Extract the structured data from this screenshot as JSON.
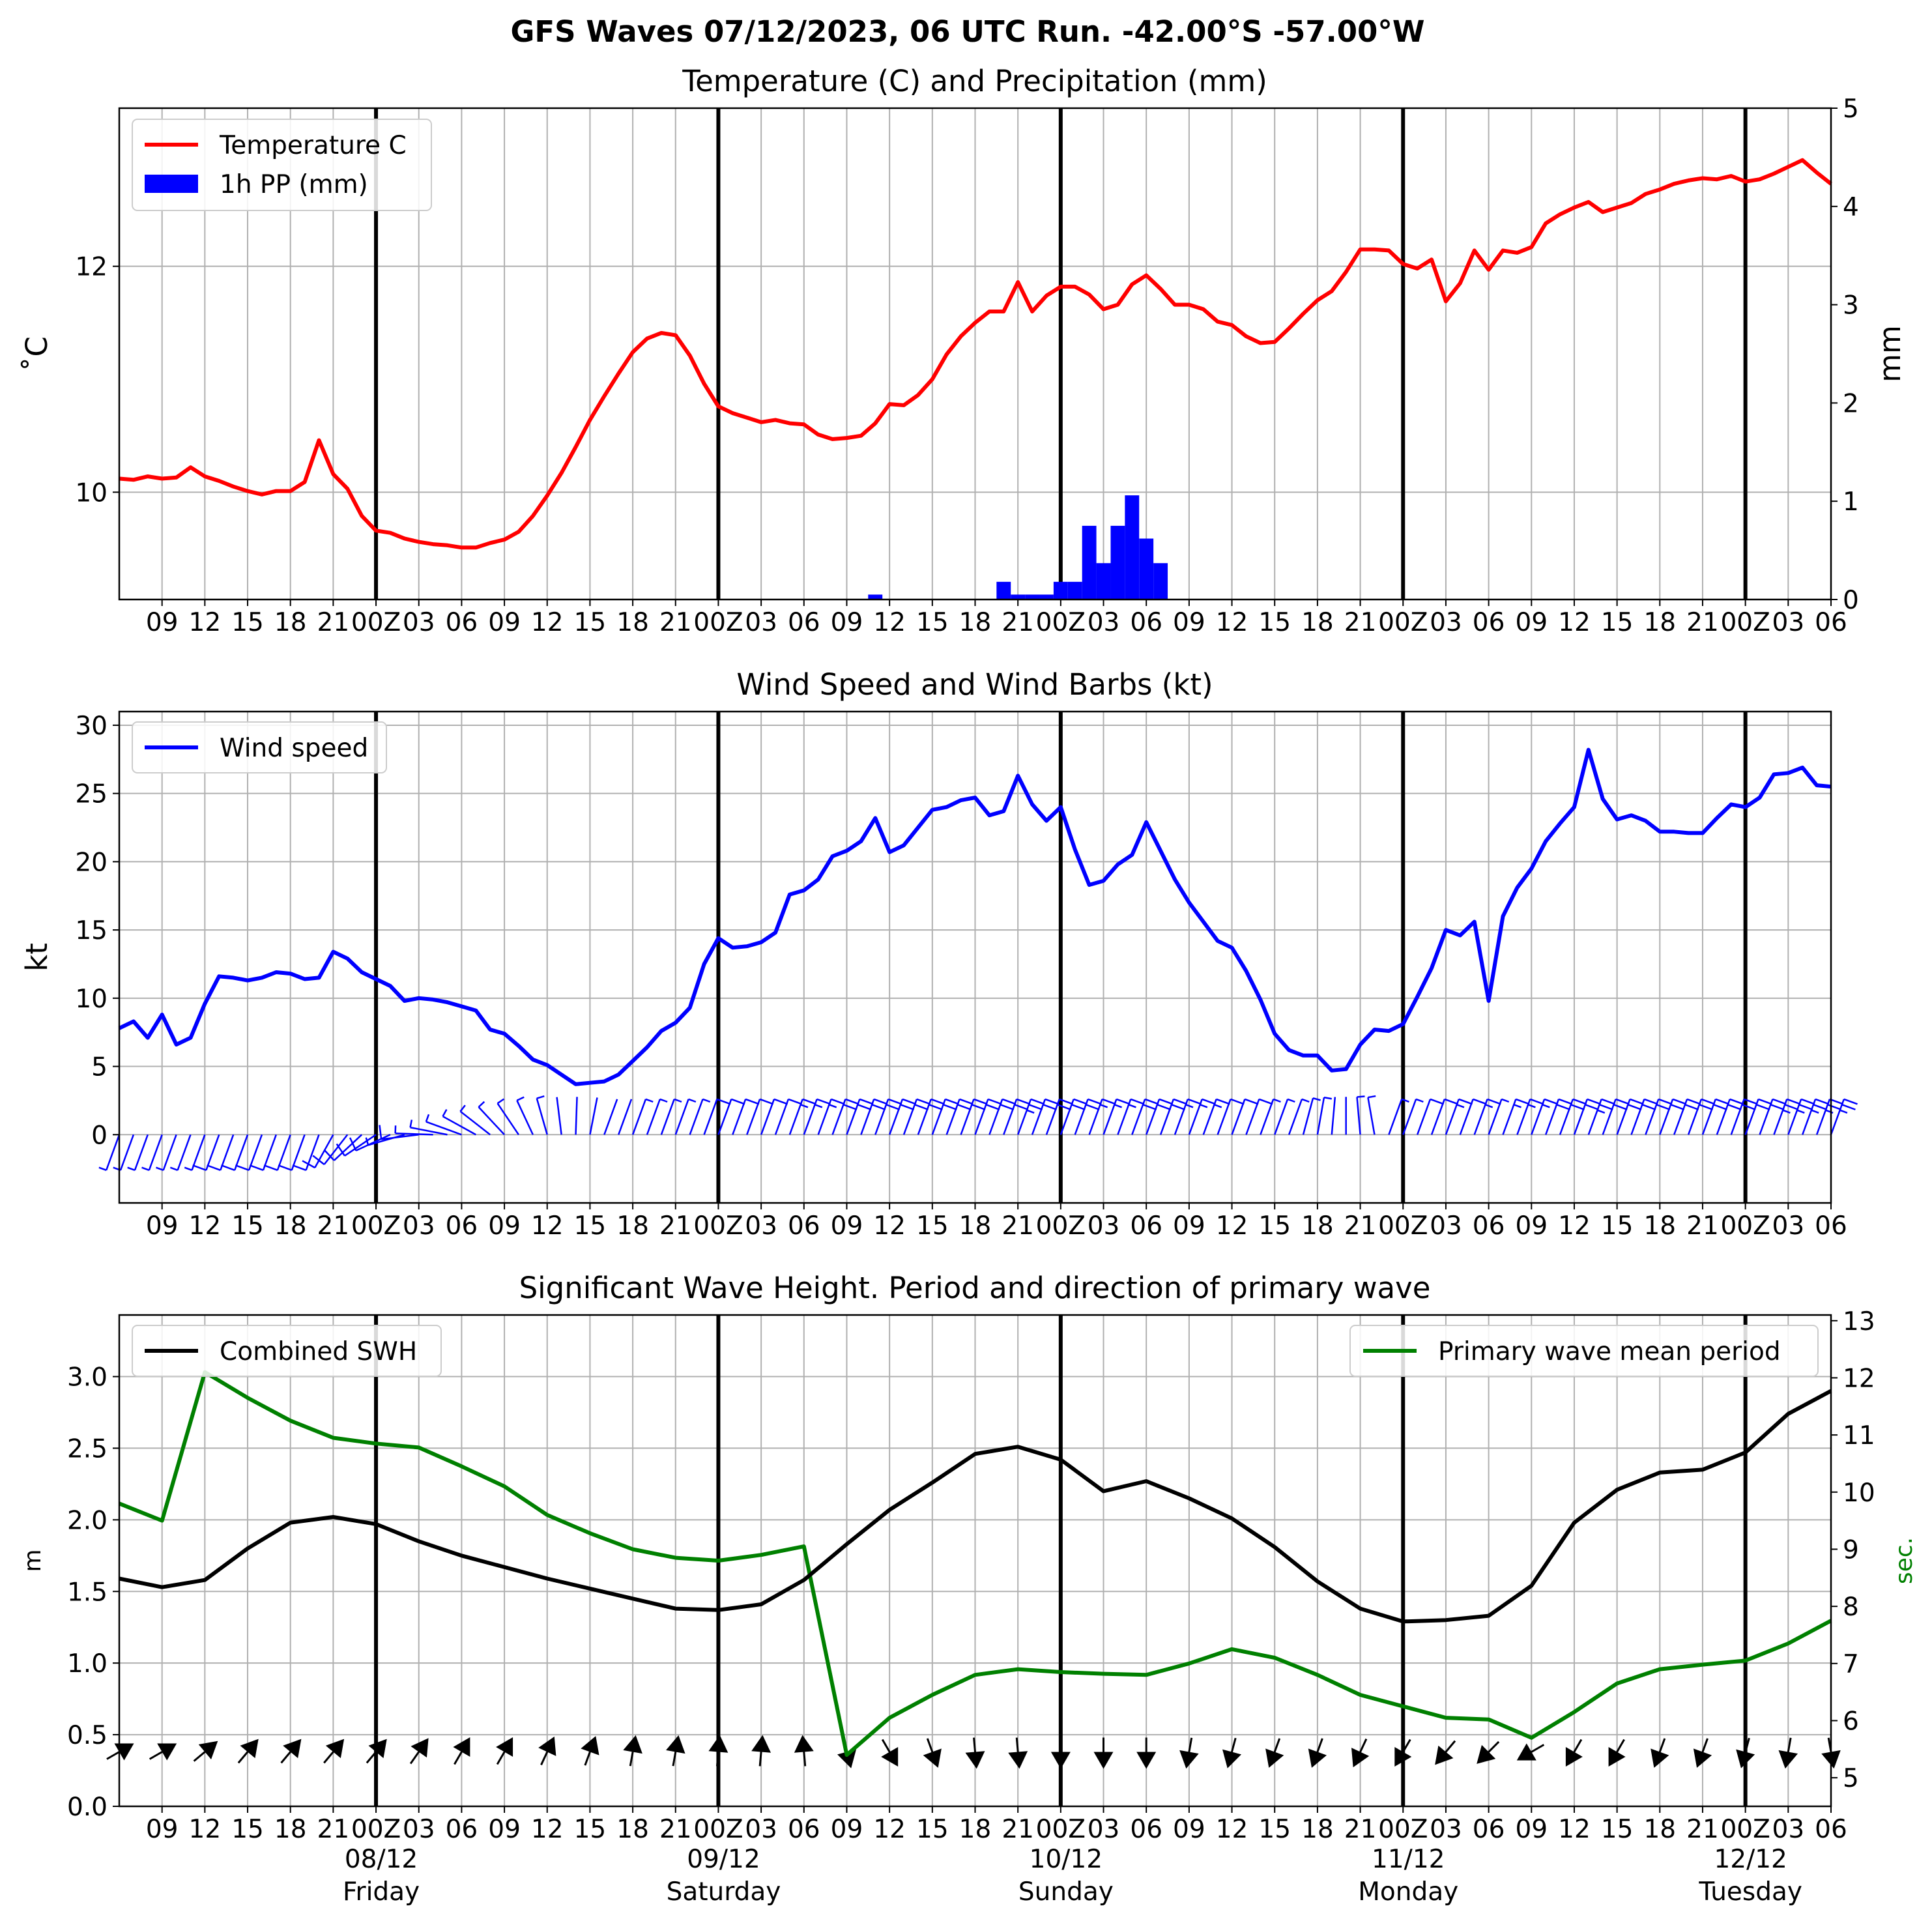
{
  "suptitle": "GFS Waves 07/12/2023, 06 UTC Run. -42.00°S -57.00°W",
  "x_tick_labels": [
    "09",
    "12",
    "15",
    "18",
    "21",
    "00Z",
    "03",
    "06",
    "09",
    "12",
    "15",
    "18",
    "21",
    "00Z",
    "03",
    "06",
    "09",
    "12",
    "15",
    "18",
    "21",
    "00Z",
    "03",
    "06",
    "09",
    "12",
    "15",
    "18",
    "21",
    "00Z",
    "03",
    "06",
    "09",
    "12",
    "15",
    "18",
    "21",
    "00Z",
    "03",
    "06"
  ],
  "day_labels": [
    {
      "date": "08/12",
      "day": "Friday"
    },
    {
      "date": "09/12",
      "day": "Saturday"
    },
    {
      "date": "10/12",
      "day": "Sunday"
    },
    {
      "date": "11/12",
      "day": "Monday"
    },
    {
      "date": "12/12",
      "day": "Tuesday"
    }
  ],
  "colors": {
    "temperature": "#ff0000",
    "precip": "#0000ff",
    "wind": "#0000ff",
    "swh": "#000000",
    "period": "#008000",
    "grid": "#b0b0b0"
  },
  "chart_data": [
    {
      "type": "line",
      "title": "Temperature (C) and Precipitation (mm)",
      "x_unit": "hours after 07/12/2023 06 UTC",
      "xlim": [
        0,
        120
      ],
      "ylabel": "˚C",
      "ylim": [
        9.05,
        13.4
      ],
      "yticks": [
        10,
        12
      ],
      "y2label": "mm",
      "y2lim": [
        0,
        5
      ],
      "y2ticks": [
        0,
        1,
        2,
        3,
        4,
        5
      ],
      "legend": "top-left",
      "legend_entries": [
        "Temperature C",
        "1h PP (mm)"
      ],
      "series": [
        {
          "name": "Temperature C",
          "x": [
            0,
            1,
            2,
            3,
            4,
            5,
            6,
            7,
            8,
            9,
            10,
            11,
            12,
            13,
            14,
            15,
            16,
            17,
            18,
            19,
            20,
            21,
            22,
            23,
            24,
            25,
            26,
            27,
            28,
            29,
            30,
            31,
            32,
            33,
            34,
            35,
            36,
            37,
            38,
            39,
            40,
            41,
            42,
            43,
            44,
            45,
            46,
            47,
            48,
            49,
            50,
            51,
            52,
            53,
            54,
            55,
            56,
            57,
            58,
            59,
            60,
            61,
            62,
            63,
            64,
            65,
            66,
            67,
            68,
            69,
            70,
            71,
            72,
            73,
            74,
            75,
            76,
            77,
            78,
            79,
            80,
            81,
            82,
            83,
            84,
            85,
            86,
            87,
            88,
            89,
            90,
            91,
            92,
            93,
            94,
            95,
            96,
            97,
            98,
            99,
            100,
            101,
            102,
            103,
            104,
            105,
            106,
            107,
            108,
            109,
            110,
            111,
            112,
            113,
            114,
            115,
            116,
            117,
            118,
            119,
            120
          ],
          "values": [
            10.12,
            10.11,
            10.14,
            10.12,
            10.13,
            10.22,
            10.14,
            10.1,
            10.05,
            10.01,
            9.98,
            10.01,
            10.01,
            10.09,
            10.46,
            10.16,
            10.03,
            9.79,
            9.66,
            9.64,
            9.59,
            9.56,
            9.54,
            9.53,
            9.51,
            9.51,
            9.55,
            9.58,
            9.65,
            9.79,
            9.97,
            10.17,
            10.4,
            10.64,
            10.85,
            11.05,
            11.24,
            11.36,
            11.41,
            11.39,
            11.21,
            10.96,
            10.76,
            10.7,
            10.66,
            10.62,
            10.64,
            10.61,
            10.6,
            10.51,
            10.47,
            10.48,
            10.5,
            10.61,
            10.78,
            10.77,
            10.86,
            11.0,
            11.22,
            11.38,
            11.5,
            11.6,
            11.6,
            11.86,
            11.6,
            11.74,
            11.82,
            11.82,
            11.75,
            11.62,
            11.66,
            11.84,
            11.92,
            11.8,
            11.66,
            11.66,
            11.62,
            11.51,
            11.48,
            11.38,
            11.32,
            11.33,
            11.45,
            11.58,
            11.7,
            11.78,
            11.95,
            12.15,
            12.15,
            12.14,
            12.02,
            11.98,
            12.06,
            11.69,
            11.85,
            12.14,
            11.97,
            12.14,
            12.12,
            12.17,
            12.38,
            12.46,
            12.52,
            12.57,
            12.48,
            12.52,
            12.56,
            12.64,
            12.68,
            12.73,
            12.76,
            12.78,
            12.77,
            12.8,
            12.75,
            12.77,
            12.82,
            12.88,
            12.94,
            12.83,
            12.73
          ]
        },
        {
          "name": "1h PP (mm)",
          "axis": "right",
          "bar_x": [
            53,
            62,
            63,
            64,
            65,
            66,
            67,
            68,
            69,
            70,
            71,
            72,
            73
          ],
          "bar_values": [
            0.05,
            0.18,
            0.05,
            0.05,
            0.05,
            0.18,
            0.18,
            0.75,
            0.37,
            0.75,
            1.06,
            0.62,
            0.37
          ]
        }
      ]
    },
    {
      "type": "line",
      "title": "Wind Speed and Wind Barbs (kt)",
      "x_unit": "hours after 07/12/2023 06 UTC",
      "xlim": [
        0,
        120
      ],
      "ylabel": "kt",
      "ylim": [
        -5,
        31
      ],
      "yticks": [
        0,
        5,
        10,
        15,
        20,
        25,
        30
      ],
      "legend": "top-left",
      "legend_entries": [
        "Wind speed"
      ],
      "barbs": "wind barbs drawn along y = 0, every hour",
      "series": [
        {
          "name": "Wind speed",
          "x": [
            0,
            1,
            2,
            3,
            4,
            5,
            6,
            7,
            8,
            9,
            10,
            11,
            12,
            13,
            14,
            15,
            16,
            17,
            18,
            19,
            20,
            21,
            22,
            23,
            24,
            25,
            26,
            27,
            28,
            29,
            30,
            31,
            32,
            33,
            34,
            35,
            36,
            37,
            38,
            39,
            40,
            41,
            42,
            43,
            44,
            45,
            46,
            47,
            48,
            49,
            50,
            51,
            52,
            53,
            54,
            55,
            56,
            57,
            58,
            59,
            60,
            61,
            62,
            63,
            64,
            65,
            66,
            67,
            68,
            69,
            70,
            71,
            72,
            73,
            74,
            75,
            76,
            77,
            78,
            79,
            80,
            81,
            82,
            83,
            84,
            85,
            86,
            87,
            88,
            89,
            90,
            91,
            92,
            93,
            94,
            95,
            96,
            97,
            98,
            99,
            100,
            101,
            102,
            103,
            104,
            105,
            106,
            107,
            108,
            109,
            110,
            111,
            112,
            113,
            114,
            115,
            116,
            117,
            118,
            119,
            120
          ],
          "values": [
            7.8,
            8.3,
            7.1,
            8.8,
            6.6,
            7.1,
            9.6,
            11.6,
            11.5,
            11.3,
            11.5,
            11.9,
            11.8,
            11.4,
            11.5,
            13.4,
            12.9,
            11.9,
            11.4,
            10.9,
            9.8,
            10.0,
            9.9,
            9.7,
            9.4,
            9.1,
            7.7,
            7.4,
            6.5,
            5.5,
            5.1,
            4.4,
            3.7,
            3.8,
            3.9,
            4.4,
            5.4,
            6.4,
            7.6,
            8.2,
            9.3,
            12.5,
            14.4,
            13.7,
            13.8,
            14.1,
            14.8,
            17.6,
            17.9,
            18.7,
            20.4,
            20.8,
            21.5,
            23.2,
            20.7,
            21.2,
            22.5,
            23.8,
            24.0,
            24.5,
            24.7,
            23.4,
            23.7,
            26.3,
            24.2,
            23.0,
            24.0,
            20.9,
            18.3,
            18.6,
            19.8,
            20.5,
            22.9,
            20.8,
            18.7,
            17.0,
            15.6,
            14.2,
            13.7,
            12.0,
            9.9,
            7.4,
            6.2,
            5.8,
            5.8,
            4.7,
            4.8,
            6.6,
            7.7,
            7.6,
            8.1,
            10.1,
            12.2,
            15.0,
            14.6,
            15.6,
            9.8,
            16.0,
            18.1,
            19.5,
            21.5,
            22.8,
            24.0,
            28.2,
            24.6,
            23.1,
            23.4,
            23.0,
            22.2,
            22.2,
            22.1,
            22.1,
            23.2,
            24.2,
            24.0,
            24.7,
            26.4,
            26.5,
            26.9,
            25.6,
            25.5
          ]
        }
      ]
    },
    {
      "type": "line",
      "title": "Significant Wave Height. Period and direction of primary wave",
      "x_unit": "hours after 07/12/2023 06 UTC",
      "xlim": [
        0,
        120
      ],
      "ylabel": "m",
      "ylim": [
        0,
        3.43
      ],
      "yticks": [
        0.0,
        0.5,
        1.0,
        1.5,
        2.0,
        2.5,
        3.0
      ],
      "y2label": "sec.",
      "y2lim": [
        4.5,
        13.1
      ],
      "y2ticks": [
        5,
        6,
        7,
        8,
        9,
        10,
        11,
        12,
        13
      ],
      "direction_arrows": "primary wave direction arrows drawn at 3-hourly steps near y = 0.4",
      "series": [
        {
          "name": "Combined SWH",
          "legend": "top-left",
          "x": [
            0,
            3,
            6,
            9,
            12,
            15,
            18,
            21,
            24,
            27,
            30,
            33,
            36,
            39,
            42,
            45,
            48,
            51,
            54,
            57,
            60,
            63,
            66,
            69,
            72,
            75,
            78,
            81,
            84,
            87,
            90,
            93,
            96,
            99,
            102,
            105,
            108,
            111,
            114,
            117,
            120
          ],
          "values": [
            1.59,
            1.53,
            1.58,
            1.8,
            1.98,
            2.02,
            1.97,
            1.85,
            1.75,
            1.67,
            1.59,
            1.52,
            1.45,
            1.38,
            1.37,
            1.41,
            1.58,
            1.83,
            2.07,
            2.26,
            2.46,
            2.51,
            2.42,
            2.2,
            2.27,
            2.15,
            2.01,
            1.81,
            1.57,
            1.38,
            1.29,
            1.3,
            1.33,
            1.54,
            1.98,
            2.21,
            2.33,
            2.35,
            2.47,
            2.74,
            2.9
          ]
        },
        {
          "name": "Primary wave mean period",
          "legend": "top-right",
          "axis": "right",
          "x": [
            0,
            3,
            6,
            9,
            12,
            15,
            18,
            21,
            24,
            27,
            30,
            33,
            36,
            39,
            42,
            45,
            48,
            51,
            54,
            57,
            60,
            63,
            66,
            69,
            72,
            75,
            78,
            81,
            84,
            87,
            90,
            93,
            96,
            99,
            102,
            105,
            108,
            111,
            114,
            117,
            120
          ],
          "values": [
            9.8,
            9.5,
            12.1,
            11.65,
            11.25,
            10.95,
            10.85,
            10.78,
            10.45,
            10.1,
            9.6,
            9.28,
            9.0,
            8.85,
            8.8,
            8.9,
            9.05,
            5.4,
            6.05,
            6.45,
            6.8,
            6.9,
            6.85,
            6.82,
            6.8,
            7.0,
            7.25,
            7.1,
            6.8,
            6.45,
            6.25,
            6.05,
            6.02,
            5.7,
            6.15,
            6.65,
            6.9,
            6.98,
            7.05,
            7.35,
            7.75
          ]
        }
      ],
      "wave_direction_deg": [
        60,
        60,
        50,
        40,
        40,
        40,
        40,
        35,
        30,
        30,
        25,
        20,
        10,
        10,
        5,
        5,
        -5,
        165,
        150,
        160,
        175,
        175,
        180,
        180,
        180,
        190,
        195,
        200,
        200,
        205,
        210,
        220,
        225,
        240,
        210,
        210,
        200,
        200,
        195,
        190,
        170
      ]
    }
  ]
}
